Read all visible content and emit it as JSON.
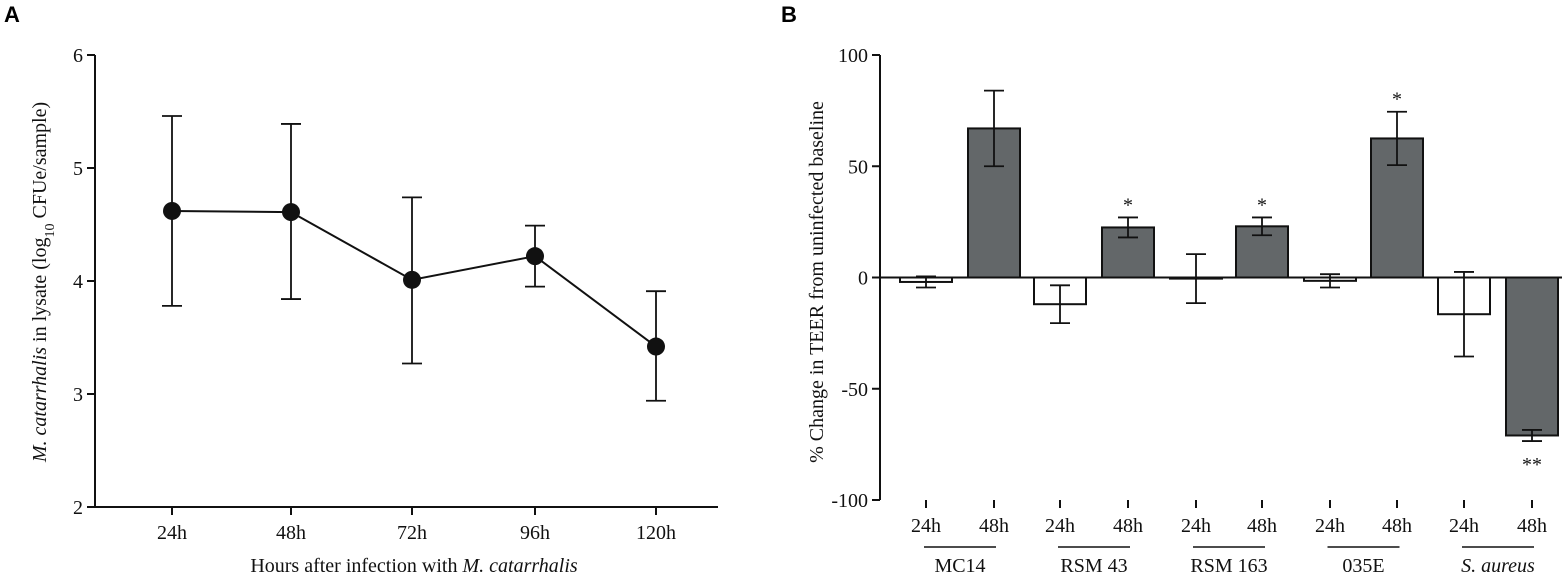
{
  "chart_data": [
    {
      "panel": "A",
      "type": "line",
      "title": "",
      "xlabel_prefix": "Hours after infection with ",
      "xlabel_italic": "M. catarrhalis",
      "ylabel_italic": "M. catarrhalis",
      "ylabel_pre": " in lysate (log",
      "ylabel_sub": "10",
      "ylabel_post": " CFUe/sample)",
      "categories": [
        "24h",
        "48h",
        "72h",
        "96h",
        "120h"
      ],
      "values": [
        4.62,
        4.61,
        4.01,
        4.22,
        3.42
      ],
      "err_upper": [
        5.46,
        5.39,
        4.74,
        4.49,
        3.91
      ],
      "err_lower": [
        3.78,
        3.84,
        3.27,
        3.95,
        2.94
      ],
      "ylim": [
        2,
        6
      ],
      "yticks": [
        "2",
        "3",
        "4",
        "5",
        "6"
      ]
    },
    {
      "panel": "B",
      "type": "bar",
      "title": "",
      "ylabel": "% Change in TEER from uninfected baseline",
      "ylim": [
        -100,
        100
      ],
      "yticks": [
        "-100",
        "-50",
        "0",
        "50",
        "100"
      ],
      "groups": [
        {
          "label": "MC14",
          "italic": false
        },
        {
          "label": "RSM 43",
          "italic": false
        },
        {
          "label": "RSM 163",
          "italic": false
        },
        {
          "label": "035E",
          "italic": false
        },
        {
          "label": "S. aureus",
          "italic": true
        }
      ],
      "bars": [
        {
          "label": "24h",
          "value": -2,
          "err": 2.5,
          "fill": "white",
          "sig": ""
        },
        {
          "label": "48h",
          "value": 67,
          "err": 17,
          "fill": "gray",
          "sig": ""
        },
        {
          "label": "24h",
          "value": -12,
          "err": 8.5,
          "fill": "white",
          "sig": ""
        },
        {
          "label": "48h",
          "value": 22.5,
          "err": 4.5,
          "fill": "gray",
          "sig": "*"
        },
        {
          "label": "24h",
          "value": -0.5,
          "err": 11,
          "fill": "white",
          "sig": ""
        },
        {
          "label": "48h",
          "value": 23,
          "err": 4,
          "fill": "gray",
          "sig": "*"
        },
        {
          "label": "24h",
          "value": -1.5,
          "err": 3,
          "fill": "white",
          "sig": ""
        },
        {
          "label": "48h",
          "value": 62.5,
          "err": 12,
          "fill": "gray",
          "sig": "*"
        },
        {
          "label": "24h",
          "value": -16.5,
          "err": 19,
          "fill": "white",
          "sig": ""
        },
        {
          "label": "48h",
          "value": -71,
          "err": 2.5,
          "fill": "gray",
          "sig": "**"
        }
      ],
      "colors": {
        "gray": "#636769",
        "white": "#ffffff",
        "stroke": "#111111"
      }
    }
  ]
}
